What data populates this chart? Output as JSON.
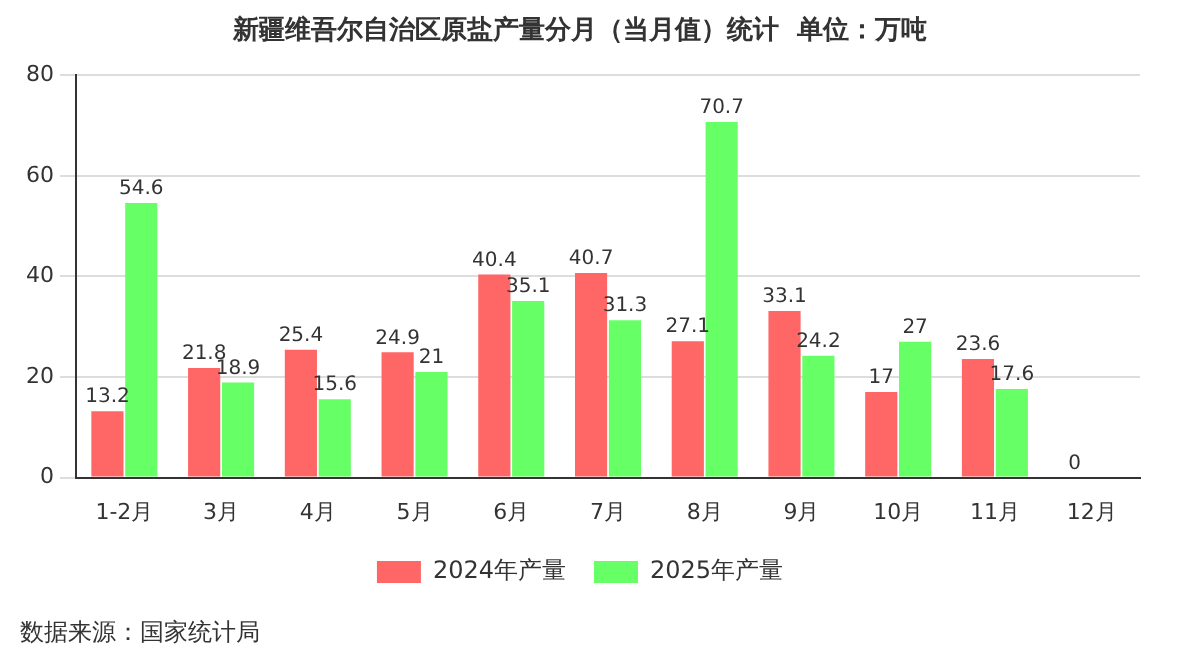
{
  "chart_data": {
    "type": "bar",
    "title": "新疆维吾尔自治区原盐产量分月（当月值）统计  单位：万吨",
    "categories": [
      "1-2月",
      "3月",
      "4月",
      "5月",
      "6月",
      "7月",
      "8月",
      "9月",
      "10月",
      "11月",
      "12月"
    ],
    "series": [
      {
        "name": "2024年产量",
        "color": "#ff6666",
        "values": [
          13.2,
          21.8,
          25.4,
          24.9,
          40.4,
          40.7,
          27.1,
          33.1,
          17,
          23.6,
          0
        ]
      },
      {
        "name": "2025年产量",
        "color": "#66ff66",
        "values": [
          54.6,
          18.9,
          15.6,
          21,
          35.1,
          31.3,
          70.7,
          24.2,
          27,
          17.6,
          null
        ]
      }
    ],
    "ylim": [
      0,
      80
    ],
    "yticks": [
      0,
      20,
      40,
      60,
      80
    ],
    "grid": "y",
    "legend": "bottom",
    "data_labels": true,
    "annotations": [
      "数据来源：国家统计局"
    ]
  }
}
